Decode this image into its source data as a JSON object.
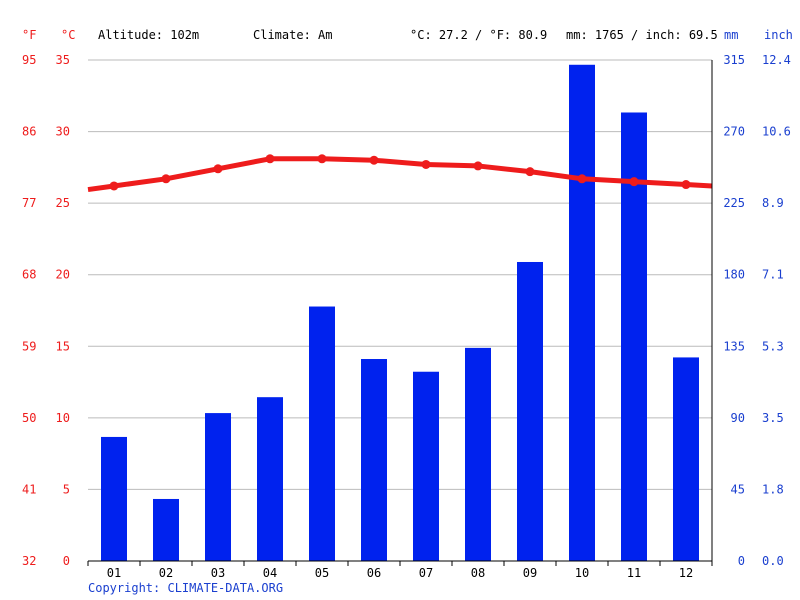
{
  "header": {
    "unit_f": "°F",
    "unit_c": "°C",
    "altitude": "Altitude: 102m",
    "climate": "Climate: Am",
    "temp_avg": "°C: 27.2 / °F: 80.9",
    "precip_total": "mm: 1765 / inch: 69.5",
    "unit_mm": "mm",
    "unit_inch": "inch"
  },
  "copyright": "Copyright: CLIMATE-DATA.ORG",
  "colors": {
    "temp": "#ee1c1c",
    "precip": "#0022ee",
    "grid": "#bbbbbb",
    "axis": "#000000",
    "blue_text": "#1a3fcf"
  },
  "chart_data": {
    "type": "bar",
    "categories": [
      "01",
      "02",
      "03",
      "04",
      "05",
      "06",
      "07",
      "08",
      "09",
      "10",
      "11",
      "12"
    ],
    "series": [
      {
        "type": "bar",
        "axis": "right",
        "unit": "mm",
        "values": [
          78,
          39,
          93,
          103,
          160,
          127,
          119,
          134,
          188,
          312,
          282,
          128
        ]
      },
      {
        "type": "line",
        "axis": "left",
        "unit": "°C",
        "values": [
          26.2,
          26.7,
          27.4,
          28.1,
          28.1,
          28.0,
          27.7,
          27.6,
          27.2,
          26.7,
          26.5,
          26.3
        ]
      }
    ],
    "y_left_celsius": {
      "ticks": [
        0,
        5,
        10,
        15,
        20,
        25,
        30,
        35
      ],
      "labels": [
        "0",
        "5",
        "10",
        "15",
        "20",
        "25",
        "30",
        "35"
      ],
      "range": [
        0,
        35
      ]
    },
    "y_left_fahrenheit": {
      "labels": [
        "32",
        "41",
        "50",
        "59",
        "68",
        "77",
        "86",
        "95"
      ]
    },
    "y_right_mm": {
      "labels": [
        "0",
        "45",
        "90",
        "135",
        "180",
        "225",
        "270",
        "315"
      ],
      "range": [
        0,
        315
      ]
    },
    "y_right_inch": {
      "labels": [
        "0.0",
        "1.8",
        "3.5",
        "5.3",
        "7.1",
        "8.9",
        "10.6",
        "12.4"
      ]
    },
    "grid": true
  }
}
